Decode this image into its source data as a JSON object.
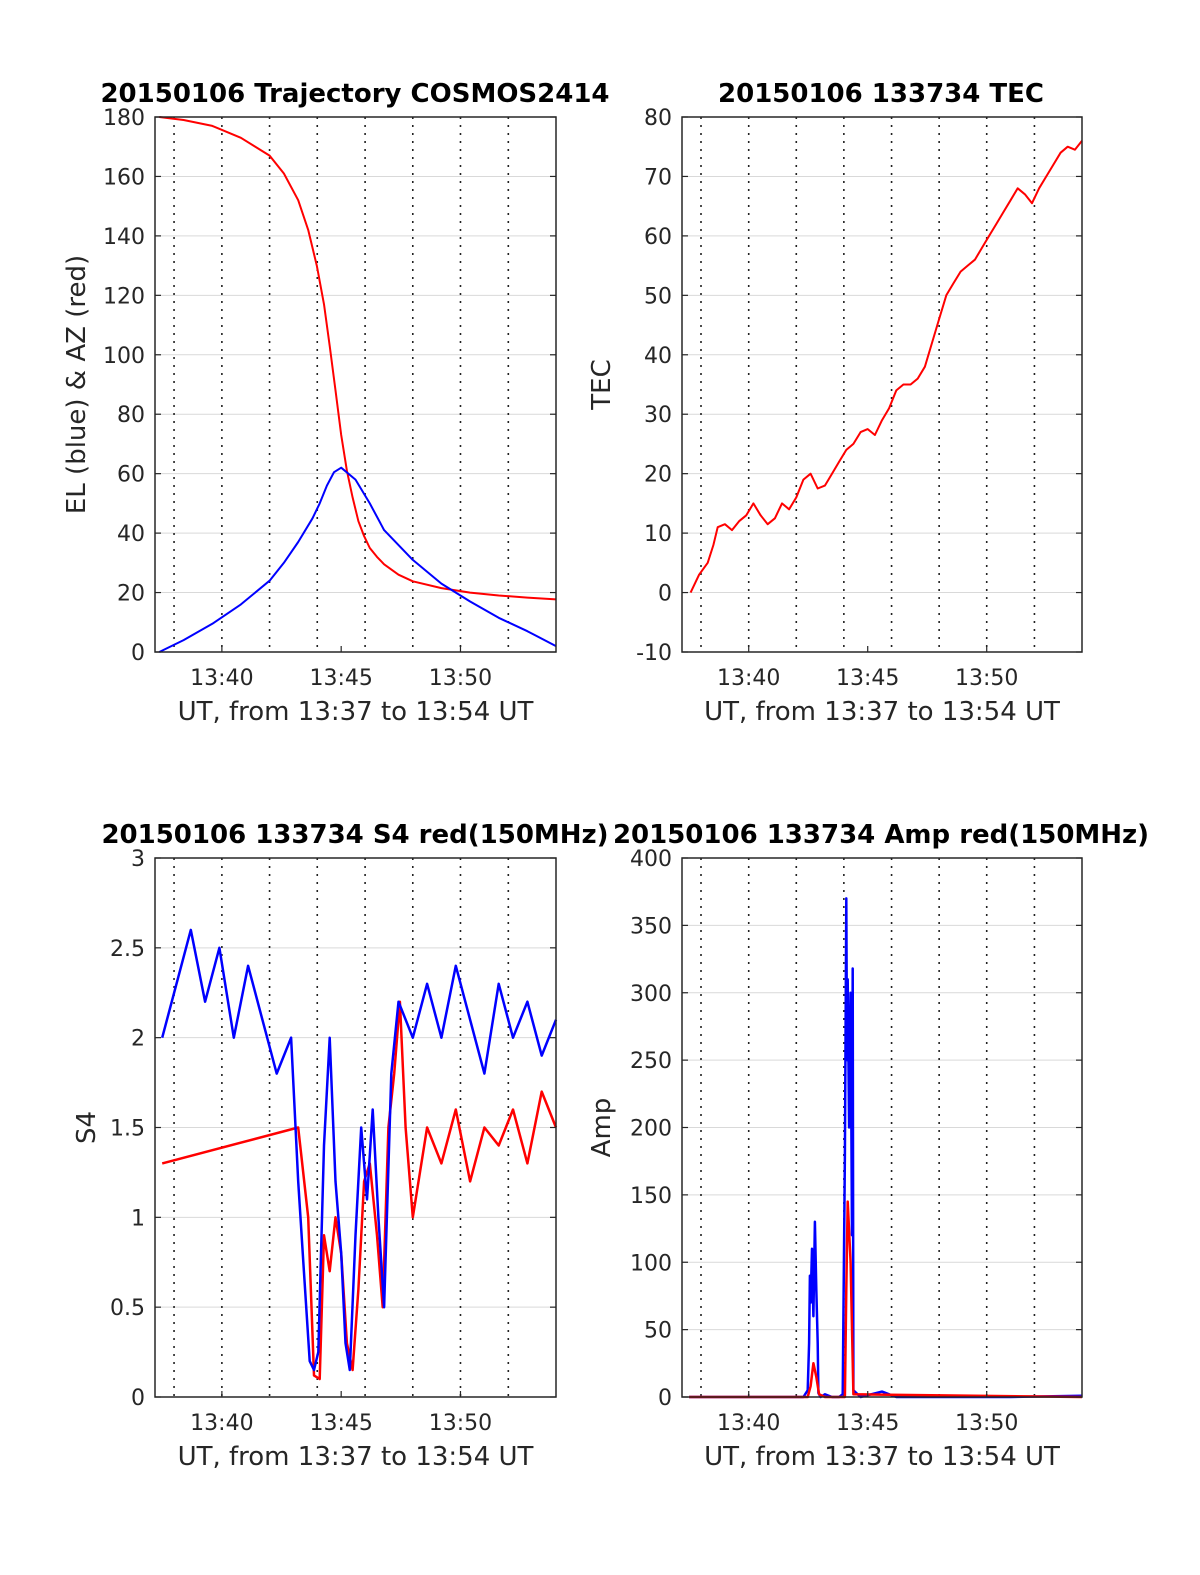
{
  "colors": {
    "red": "#ff0000",
    "blue": "#0000ff",
    "axis": "#262626",
    "grid": "#d9d9d9"
  },
  "chart_data": [
    {
      "type": "line",
      "title": "20150106 Trajectory COSMOS2414",
      "xlabel": "UT, from 13:37 to 13:54 UT",
      "ylabel": "EL (blue) & AZ (red)",
      "xlim": [
        13.62,
        13.9
      ],
      "ylim": [
        0,
        180
      ],
      "yticks": [
        0,
        20,
        40,
        60,
        80,
        100,
        120,
        140,
        160,
        180
      ],
      "xtick_labels": [
        "13:40",
        "13:45",
        "13:50"
      ],
      "grid": "on",
      "series": [
        {
          "color": "red",
          "x": [
            13.623,
            13.64,
            13.66,
            13.68,
            13.7,
            13.71,
            13.72,
            13.727,
            13.733,
            13.738,
            13.742,
            13.746,
            13.75,
            13.754,
            13.758,
            13.762,
            13.766,
            13.77,
            13.775,
            13.78,
            13.79,
            13.8,
            13.82,
            13.84,
            13.86,
            13.88,
            13.9
          ],
          "y": [
            180,
            179,
            177,
            173,
            167,
            161,
            152,
            142,
            130,
            117,
            103,
            88,
            73,
            61,
            52,
            44,
            39,
            35,
            32,
            29.5,
            26,
            23.8,
            21.5,
            20,
            19,
            18.3,
            17.7
          ]
        },
        {
          "color": "blue",
          "x": [
            13.623,
            13.64,
            13.66,
            13.68,
            13.7,
            13.71,
            13.72,
            13.73,
            13.735,
            13.74,
            13.745,
            13.75,
            13.76,
            13.77,
            13.78,
            13.8,
            13.82,
            13.84,
            13.86,
            13.88,
            13.9
          ],
          "y": [
            0,
            4,
            9.5,
            16,
            24,
            30,
            37,
            45,
            50,
            56,
            60.5,
            62,
            58,
            50,
            41,
            31,
            23,
            17,
            11.5,
            7,
            2
          ]
        }
      ]
    },
    {
      "type": "line",
      "title": "20150106 133734 TEC",
      "xlabel": "UT, from 13:37 to 13:54 UT",
      "ylabel": "TEC",
      "xlim": [
        13.62,
        13.9
      ],
      "ylim": [
        -10,
        80
      ],
      "yticks": [
        -10,
        0,
        10,
        20,
        30,
        40,
        50,
        60,
        70,
        80
      ],
      "xtick_labels": [
        "13:40",
        "13:45",
        "13:50"
      ],
      "grid": "on",
      "series": [
        {
          "color": "red",
          "x": [
            13.626,
            13.632,
            13.638,
            13.642,
            13.645,
            13.65,
            13.655,
            13.66,
            13.665,
            13.67,
            13.675,
            13.68,
            13.685,
            13.69,
            13.695,
            13.7,
            13.705,
            13.71,
            13.715,
            13.72,
            13.725,
            13.73,
            13.735,
            13.74,
            13.745,
            13.75,
            13.755,
            13.76,
            13.765,
            13.77,
            13.775,
            13.78,
            13.785,
            13.79,
            13.795,
            13.8,
            13.805,
            13.81,
            13.815,
            13.82,
            13.825,
            13.83,
            13.835,
            13.84,
            13.845,
            13.85,
            13.855,
            13.86,
            13.865,
            13.87,
            13.875,
            13.88,
            13.885,
            13.89,
            13.895,
            13.9
          ],
          "y": [
            0,
            3,
            5,
            8,
            11,
            11.5,
            10.5,
            12,
            13,
            15,
            13,
            11.5,
            12.5,
            15,
            14,
            16,
            19,
            20,
            17.5,
            18,
            20,
            22,
            24,
            25,
            27,
            27.5,
            26.5,
            29,
            31,
            34,
            35,
            35,
            36,
            38,
            42,
            46,
            50,
            52,
            54,
            55,
            56,
            58,
            60,
            62,
            64,
            66,
            68,
            67,
            65.5,
            68,
            70,
            72,
            74,
            75,
            74.5,
            76
          ]
        }
      ]
    },
    {
      "type": "line",
      "title": "20150106 133734 S4 red(150MHz)",
      "xlabel": "UT, from 13:37 to 13:54 UT",
      "ylabel": "S4",
      "xlim": [
        13.62,
        13.9
      ],
      "ylim": [
        0,
        3
      ],
      "yticks": [
        0,
        0.5,
        1,
        1.5,
        2,
        2.5,
        3
      ],
      "ytick_labels": [
        "0",
        "0.5",
        "1",
        "1.5",
        "2",
        "2.5",
        "3"
      ],
      "xtick_labels": [
        "13:40",
        "13:45",
        "13:50"
      ],
      "grid": "on",
      "series": [
        {
          "color": "red",
          "x": [
            13.625,
            13.72,
            13.727,
            13.731,
            13.735,
            13.738,
            13.742,
            13.746,
            13.75,
            13.754,
            13.758,
            13.762,
            13.766,
            13.77,
            13.775,
            13.779,
            13.783,
            13.787,
            13.791,
            13.795,
            13.8,
            13.81,
            13.82,
            13.83,
            13.84,
            13.85,
            13.86,
            13.87,
            13.88,
            13.89,
            13.9
          ],
          "y": [
            1.3,
            1.5,
            1.0,
            0.12,
            0.1,
            0.9,
            0.7,
            1.0,
            0.8,
            0.3,
            0.15,
            0.6,
            1.2,
            1.3,
            0.9,
            0.5,
            1.5,
            1.8,
            2.2,
            1.5,
            1.0,
            1.5,
            1.3,
            1.6,
            1.2,
            1.5,
            1.4,
            1.6,
            1.3,
            1.7,
            1.5
          ]
        },
        {
          "color": "blue",
          "x": [
            13.625,
            13.635,
            13.645,
            13.655,
            13.665,
            13.675,
            13.685,
            13.695,
            13.705,
            13.715,
            13.72,
            13.724,
            13.728,
            13.731,
            13.734,
            13.738,
            13.742,
            13.746,
            13.75,
            13.753,
            13.756,
            13.76,
            13.764,
            13.768,
            13.772,
            13.776,
            13.78,
            13.785,
            13.79,
            13.8,
            13.81,
            13.82,
            13.83,
            13.84,
            13.85,
            13.86,
            13.87,
            13.88,
            13.89,
            13.9
          ],
          "y": [
            2.0,
            2.3,
            2.6,
            2.2,
            2.5,
            2.0,
            2.4,
            2.1,
            1.8,
            2.0,
            1.2,
            0.7,
            0.2,
            0.15,
            0.25,
            1.4,
            2.0,
            1.2,
            0.8,
            0.3,
            0.15,
            0.9,
            1.5,
            1.1,
            1.6,
            1.0,
            0.5,
            1.8,
            2.2,
            2.0,
            2.3,
            2.0,
            2.4,
            2.1,
            1.8,
            2.3,
            2.0,
            2.2,
            1.9,
            2.1
          ]
        }
      ]
    },
    {
      "type": "line",
      "title": "20150106 133734 Amp red(150MHz)",
      "xlabel": "UT, from 13:37 to 13:54 UT",
      "ylabel": "Amp",
      "xlim": [
        13.62,
        13.9
      ],
      "ylim": [
        0,
        400
      ],
      "yticks": [
        0,
        50,
        100,
        150,
        200,
        250,
        300,
        350,
        400
      ],
      "xtick_labels": [
        "13:40",
        "13:45",
        "13:50"
      ],
      "grid": "on",
      "series": [
        {
          "color": "blue",
          "x": [
            13.625,
            13.7,
            13.705,
            13.708,
            13.709,
            13.7095,
            13.71,
            13.711,
            13.712,
            13.713,
            13.714,
            13.715,
            13.7155,
            13.717,
            13.72,
            13.725,
            13.73,
            13.7325,
            13.734,
            13.735,
            13.7355,
            13.736,
            13.737,
            13.738,
            13.739,
            13.7395,
            13.74,
            13.745,
            13.76,
            13.77,
            13.8,
            13.85,
            13.9
          ],
          "y": [
            0,
            0,
            0,
            5,
            40,
            90,
            70,
            110,
            60,
            130,
            80,
            40,
            3,
            0,
            2,
            0,
            0,
            2,
            180,
            370,
            250,
            310,
            200,
            300,
            120,
            318,
            5,
            0,
            4,
            0,
            0,
            0,
            1
          ]
        },
        {
          "color": "red",
          "x": [
            13.625,
            13.708,
            13.71,
            13.712,
            13.714,
            13.716,
            13.72,
            13.734,
            13.735,
            13.736,
            13.738,
            13.74,
            13.9
          ],
          "y": [
            0,
            0,
            8,
            25,
            15,
            2,
            0,
            0,
            80,
            145,
            100,
            2,
            0
          ]
        }
      ]
    }
  ]
}
